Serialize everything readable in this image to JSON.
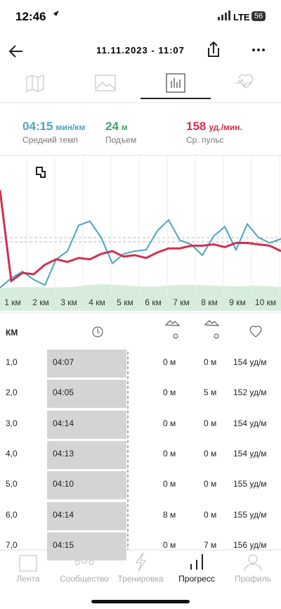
{
  "status_bar": {
    "time": "12:46",
    "network": "LTE",
    "battery": "56"
  },
  "header": {
    "title": "11.11.2023 - 11:07"
  },
  "stats": [
    {
      "value": "04:15",
      "unit": "мин/км",
      "label": "Средний темп"
    },
    {
      "value": "24",
      "unit": "м",
      "label": "Подъем"
    },
    {
      "value": "158",
      "unit": "уд./мин.",
      "label": "Ср. пульс"
    }
  ],
  "chart": {
    "type": "line",
    "x": [
      0.55,
      0.95,
      1.35,
      1.75,
      2.15,
      2.55,
      2.95,
      3.35,
      3.75,
      4.15,
      4.55,
      4.95,
      5.35,
      5.75,
      6.15,
      6.55,
      6.95,
      7.35,
      7.75,
      8.15,
      8.55,
      8.95,
      9.35,
      9.75,
      10.15,
      10.55
    ],
    "xlim": [
      0.55,
      10.55
    ],
    "xticks": [
      {
        "value": 1,
        "label": "1 км"
      },
      {
        "value": 2,
        "label": "2 км"
      },
      {
        "value": 3,
        "label": "3 км"
      },
      {
        "value": 4,
        "label": "4 км"
      },
      {
        "value": 5,
        "label": "5 км"
      },
      {
        "value": 6,
        "label": "6 км"
      },
      {
        "value": 7,
        "label": "7 км"
      },
      {
        "value": 8,
        "label": "8 км"
      },
      {
        "value": 9,
        "label": "9 км"
      },
      {
        "value": 10,
        "label": "10 км"
      }
    ],
    "ylim": [
      0,
      100
    ],
    "series": [
      {
        "color": "#4ba3c7",
        "values": [
          3,
          10,
          15,
          9,
          5,
          24,
          30,
          49,
          52,
          40,
          21,
          28,
          30,
          31,
          45,
          53,
          38,
          35,
          27,
          41,
          48,
          31,
          50,
          40,
          36,
          39
        ]
      },
      {
        "color": "#d0304f",
        "values": [
          75,
          8,
          14,
          13,
          20,
          24,
          22,
          25,
          24,
          28,
          30,
          26,
          27,
          25,
          29,
          32,
          32,
          34,
          34,
          35,
          33,
          36,
          36,
          35,
          34,
          30
        ]
      }
    ]
  },
  "table": {
    "header": "КМ",
    "rows": [
      [
        "1,0",
        "04:07",
        "0 м",
        "0 м",
        "154 уд/м"
      ],
      [
        "2,0",
        "04:05",
        "0 м",
        "5 м",
        "152 уд/м"
      ],
      [
        "3,0",
        "04:14",
        "0 м",
        "0 м",
        "154 уд/м"
      ],
      [
        "4,0",
        "04:13",
        "0 м",
        "0 м",
        "154 уд/м"
      ],
      [
        "5,0",
        "04:10",
        "0 м",
        "0 м",
        "155 уд/м"
      ],
      [
        "6,0",
        "04:14",
        "8 м",
        "0 м",
        "155 уд/м"
      ],
      [
        "7,0",
        "04:15",
        "0 м",
        "7 м",
        "156 уд/м"
      ]
    ]
  },
  "tab_bar": [
    "Лента",
    "Сообщество",
    "Тренировка",
    "Прогресс",
    "Профиль"
  ]
}
